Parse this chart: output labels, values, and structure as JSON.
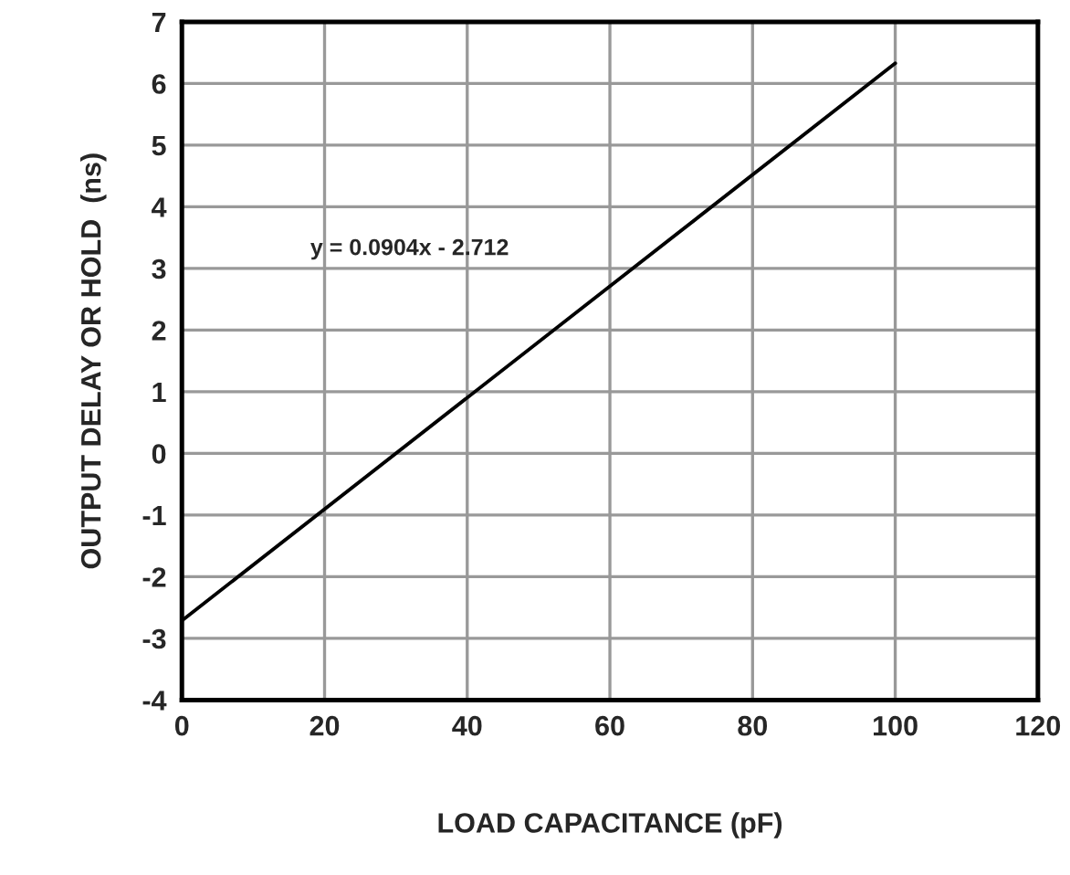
{
  "chart_data": {
    "type": "line",
    "xlabel": "LOAD CAPACITANCE (pF)",
    "ylabel": "OUTPUT DELAY OR HOLD  (ns)",
    "x": [
      0,
      100
    ],
    "series": [
      {
        "color": "#000000",
        "values": [
          -2.712,
          6.328
        ]
      }
    ],
    "annotations": [
      "y = 0.0904x - 2.712"
    ],
    "xlim": [
      0,
      120
    ],
    "xticks": [
      0,
      20,
      40,
      60,
      80,
      100,
      120
    ],
    "ylim": [
      -4,
      7
    ],
    "yticks": [
      -4,
      -3,
      -2,
      -1,
      0,
      1,
      2,
      3,
      4,
      5,
      6,
      7
    ],
    "grid": true,
    "legend": false,
    "marker": "none",
    "line_style": "solid"
  }
}
